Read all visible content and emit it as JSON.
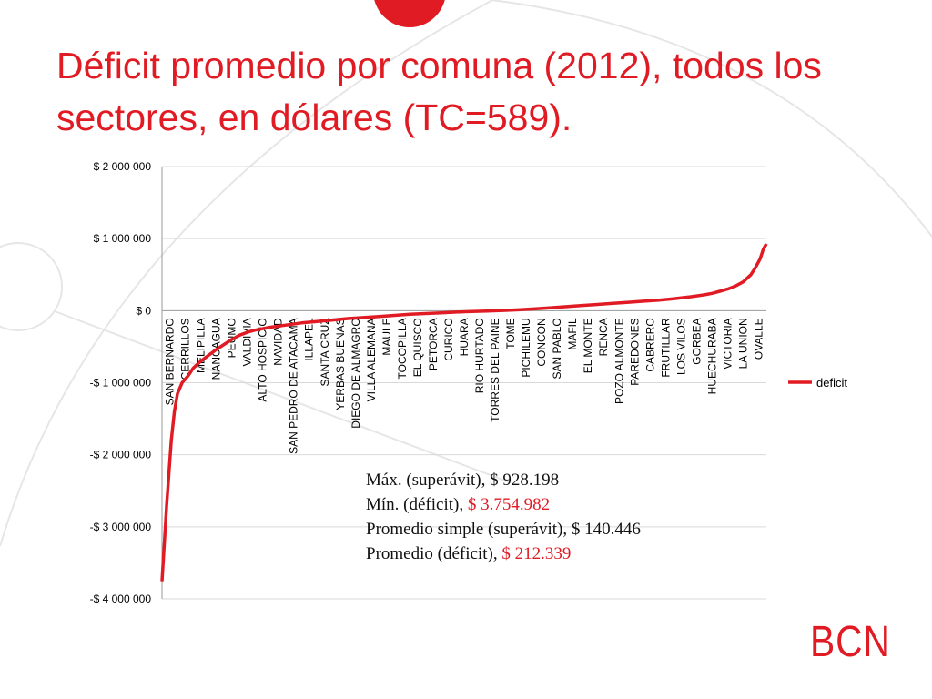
{
  "title": "Déficit promedio por comuna (2012), todos los sectores, en dólares (TC=589).",
  "logo_text": "BCN",
  "stats": [
    {
      "label": "Máx. (superávit), ",
      "value": "$ 928.198",
      "value_color": "#111111"
    },
    {
      "label": "Mín. (déficit), ",
      "value": "$ 3.754.982",
      "value_color": "#e01b24"
    },
    {
      "label": "Promedio simple (superávit), ",
      "value": "$ 140.446",
      "value_color": "#111111"
    },
    {
      "label": "Promedio (déficit), ",
      "value": "$ 212.339",
      "value_color": "#e01b24"
    }
  ],
  "colors": {
    "accent": "#e01b24",
    "decor": "#e8e8e8",
    "grid": "#d9d9d9"
  },
  "chart_data": {
    "type": "line",
    "title": "",
    "xlabel": "",
    "ylabel": "",
    "ylim": [
      -4000000,
      2000000
    ],
    "yticks": [
      2000000,
      1000000,
      0,
      -1000000,
      -2000000,
      -3000000,
      -4000000
    ],
    "ytick_labels": [
      "$ 2 000 000",
      "$ 1 000 000",
      "$ 0",
      "-$ 1 000 000",
      "-$ 2 000 000",
      "-$ 3 000 000",
      "-$ 4 000 000"
    ],
    "legend": {
      "position": "right",
      "entries": [
        "deficit"
      ]
    },
    "grid": true,
    "category_labels": [
      "SAN BERNARDO",
      "CERRILLOS",
      "MELIPILLA",
      "NANCAGUA",
      "PEUMO",
      "VALDIVIA",
      "ALTO HOSPICIO",
      "NAVIDAD",
      "SAN PEDRO DE ATACAMA",
      "ILLAPEL",
      "SANTA CRUZ",
      "YERBAS BUENAS",
      "DIEGO DE ALMAGRO",
      "VILLA ALEMANA",
      "MAULE",
      "TOCOPILLA",
      "EL QUISCO",
      "PETORCA",
      "CURICO",
      "HUARA",
      "RIO HURTADO",
      "TORRES DEL PAINE",
      "TOME",
      "PICHILEMU",
      "CONCON",
      "SAN PABLO",
      "MAFIL",
      "EL MONTE",
      "RENCA",
      "POZO ALMONTE",
      "PAREDONES",
      "CABRERO",
      "FRUTILLAR",
      "LOS VILOS",
      "GORBEA",
      "HUECHURABA",
      "VICTORIA",
      "LA UNION",
      "OVALLE"
    ],
    "series": [
      {
        "name": "deficit",
        "color": "#e01b24",
        "points": [
          [
            0,
            -3754982
          ],
          [
            0.3,
            -2700000
          ],
          [
            0.6,
            -1800000
          ],
          [
            0.8,
            -1400000
          ],
          [
            1,
            -1150000
          ],
          [
            1.3,
            -1000000
          ],
          [
            1.7,
            -900000
          ],
          [
            2,
            -800000
          ],
          [
            2.5,
            -700000
          ],
          [
            3,
            -620000
          ],
          [
            3.5,
            -540000
          ],
          [
            4,
            -470000
          ],
          [
            4.5,
            -400000
          ],
          [
            5,
            -340000
          ],
          [
            5.5,
            -300000
          ],
          [
            6,
            -270000
          ],
          [
            7,
            -230000
          ],
          [
            8,
            -200000
          ],
          [
            9,
            -170000
          ],
          [
            10,
            -150000
          ],
          [
            11,
            -130000
          ],
          [
            12,
            -110000
          ],
          [
            13,
            -95000
          ],
          [
            14,
            -80000
          ],
          [
            15,
            -65000
          ],
          [
            16,
            -50000
          ],
          [
            17,
            -40000
          ],
          [
            18,
            -30000
          ],
          [
            19,
            -20000
          ],
          [
            20,
            -12000
          ],
          [
            21,
            -5000
          ],
          [
            22,
            3000
          ],
          [
            23,
            12000
          ],
          [
            24,
            25000
          ],
          [
            25,
            40000
          ],
          [
            26,
            55000
          ],
          [
            27,
            70000
          ],
          [
            28,
            85000
          ],
          [
            29,
            100000
          ],
          [
            30,
            115000
          ],
          [
            31,
            130000
          ],
          [
            32,
            145000
          ],
          [
            33,
            165000
          ],
          [
            34,
            190000
          ],
          [
            35,
            220000
          ],
          [
            35.5,
            240000
          ],
          [
            36,
            270000
          ],
          [
            36.5,
            300000
          ],
          [
            37,
            340000
          ],
          [
            37.5,
            400000
          ],
          [
            38,
            500000
          ],
          [
            38.3,
            600000
          ],
          [
            38.6,
            720000
          ],
          [
            38.8,
            850000
          ],
          [
            39,
            928198
          ]
        ]
      }
    ]
  }
}
